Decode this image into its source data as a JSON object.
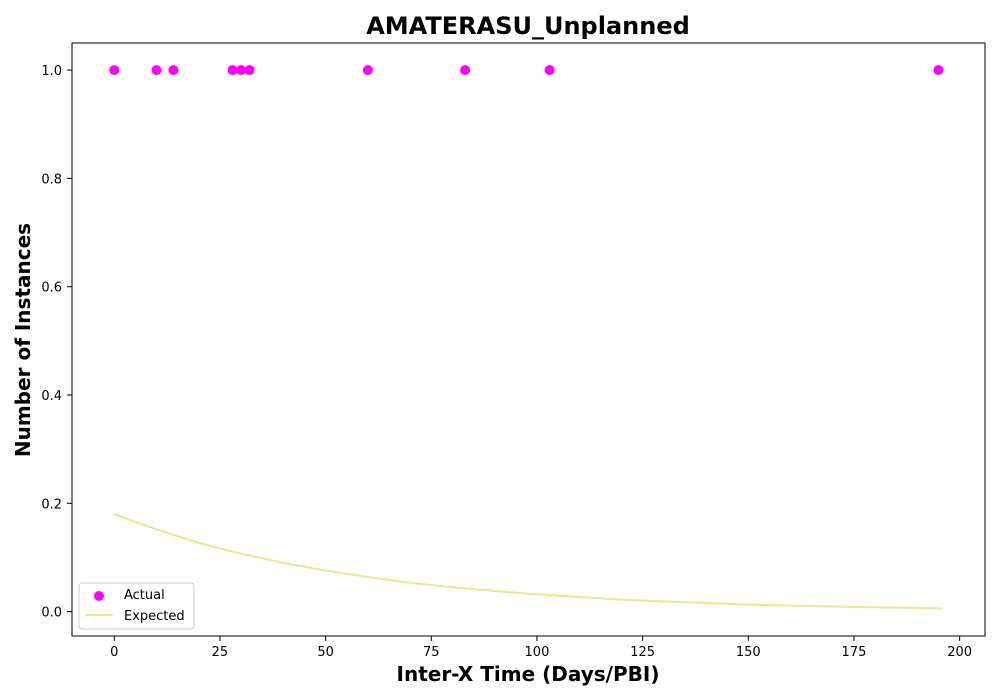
{
  "chart_data": {
    "type": "scatter",
    "title": "AMATERASU_Unplanned",
    "xlabel": "Inter-X Time (Days/PBI)",
    "ylabel": "Number of Instances",
    "xlim": [
      -10,
      206
    ],
    "ylim": [
      -0.045,
      1.05
    ],
    "xticks": [
      0,
      25,
      50,
      75,
      100,
      125,
      150,
      175,
      200
    ],
    "yticks": [
      0.0,
      0.2,
      0.4,
      0.6,
      0.8,
      1.0
    ],
    "xtick_labels": [
      "0",
      "25",
      "50",
      "75",
      "100",
      "125",
      "150",
      "175",
      "200"
    ],
    "ytick_labels": [
      "0.0",
      "0.2",
      "0.4",
      "0.6",
      "0.8",
      "1.0"
    ],
    "grid": false,
    "legend_position": "lower-left",
    "series": [
      {
        "name": "Actual",
        "kind": "scatter",
        "color": "#ff00ff",
        "x": [
          0,
          10,
          14,
          28,
          30,
          32,
          60,
          83,
          103,
          195
        ],
        "y": [
          1,
          1,
          1,
          1,
          1,
          1,
          1,
          1,
          1,
          1
        ]
      },
      {
        "name": "Expected",
        "kind": "line",
        "color": "#f0e68c",
        "x": [
          0,
          10,
          20,
          30,
          40,
          50,
          60,
          70,
          80,
          90,
          100,
          110,
          120,
          130,
          140,
          150,
          160,
          170,
          180,
          190,
          196
        ],
        "y": [
          0.18,
          0.152,
          0.127,
          0.107,
          0.09,
          0.076,
          0.064,
          0.053,
          0.045,
          0.038,
          0.032,
          0.027,
          0.022,
          0.019,
          0.016,
          0.013,
          0.011,
          0.0094,
          0.0079,
          0.0066,
          0.006
        ]
      }
    ]
  }
}
